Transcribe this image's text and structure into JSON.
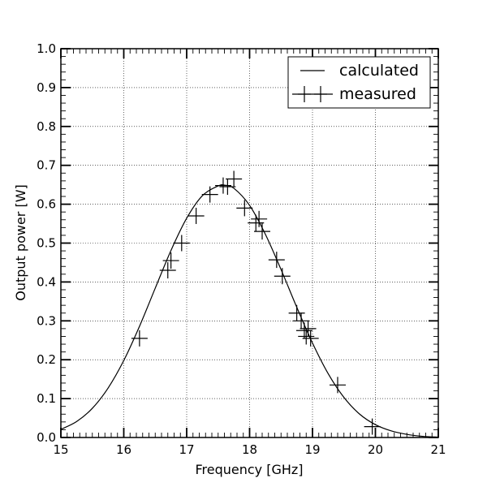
{
  "chart_data": {
    "type": "line",
    "title": "",
    "xlabel": "Frequency [GHz]",
    "ylabel": "Output power [W]",
    "xlim": [
      15,
      21
    ],
    "ylim": [
      0,
      1
    ],
    "x_ticks": [
      "15",
      "16",
      "17",
      "18",
      "19",
      "20",
      "21"
    ],
    "y_ticks": [
      "0.0",
      "0.1",
      "0.2",
      "0.3",
      "0.4",
      "0.5",
      "0.6",
      "0.7",
      "0.8",
      "0.9",
      "1.0"
    ],
    "grid": true,
    "legend_position": "top-right",
    "series": [
      {
        "name": "calculated",
        "style": "line",
        "color": "#000000",
        "x": [
          15.0,
          15.25,
          15.5,
          15.75,
          16.0,
          16.25,
          16.5,
          16.75,
          17.0,
          17.25,
          17.5,
          17.6,
          17.75,
          18.0,
          18.25,
          18.5,
          18.75,
          19.0,
          19.25,
          19.5,
          19.75,
          20.0,
          20.25,
          20.5,
          20.75,
          21.0
        ],
        "y": [
          0.021,
          0.041,
          0.075,
          0.127,
          0.198,
          0.286,
          0.384,
          0.481,
          0.564,
          0.622,
          0.647,
          0.649,
          0.641,
          0.597,
          0.523,
          0.432,
          0.335,
          0.243,
          0.164,
          0.103,
          0.06,
          0.033,
          0.017,
          0.008,
          0.003,
          0.001
        ]
      },
      {
        "name": "measured",
        "style": "crosses",
        "color": "#000000",
        "x": [
          16.25,
          16.7,
          16.75,
          16.92,
          17.15,
          17.37,
          17.58,
          17.65,
          17.75,
          17.92,
          18.1,
          18.15,
          18.2,
          18.43,
          18.52,
          18.75,
          18.82,
          18.87,
          18.9,
          18.93,
          18.97,
          19.4,
          19.95
        ],
        "y": [
          0.255,
          0.43,
          0.455,
          0.5,
          0.57,
          0.625,
          0.648,
          0.645,
          0.665,
          0.59,
          0.552,
          0.562,
          0.53,
          0.457,
          0.415,
          0.32,
          0.3,
          0.275,
          0.26,
          0.28,
          0.255,
          0.135,
          0.028
        ]
      }
    ]
  }
}
